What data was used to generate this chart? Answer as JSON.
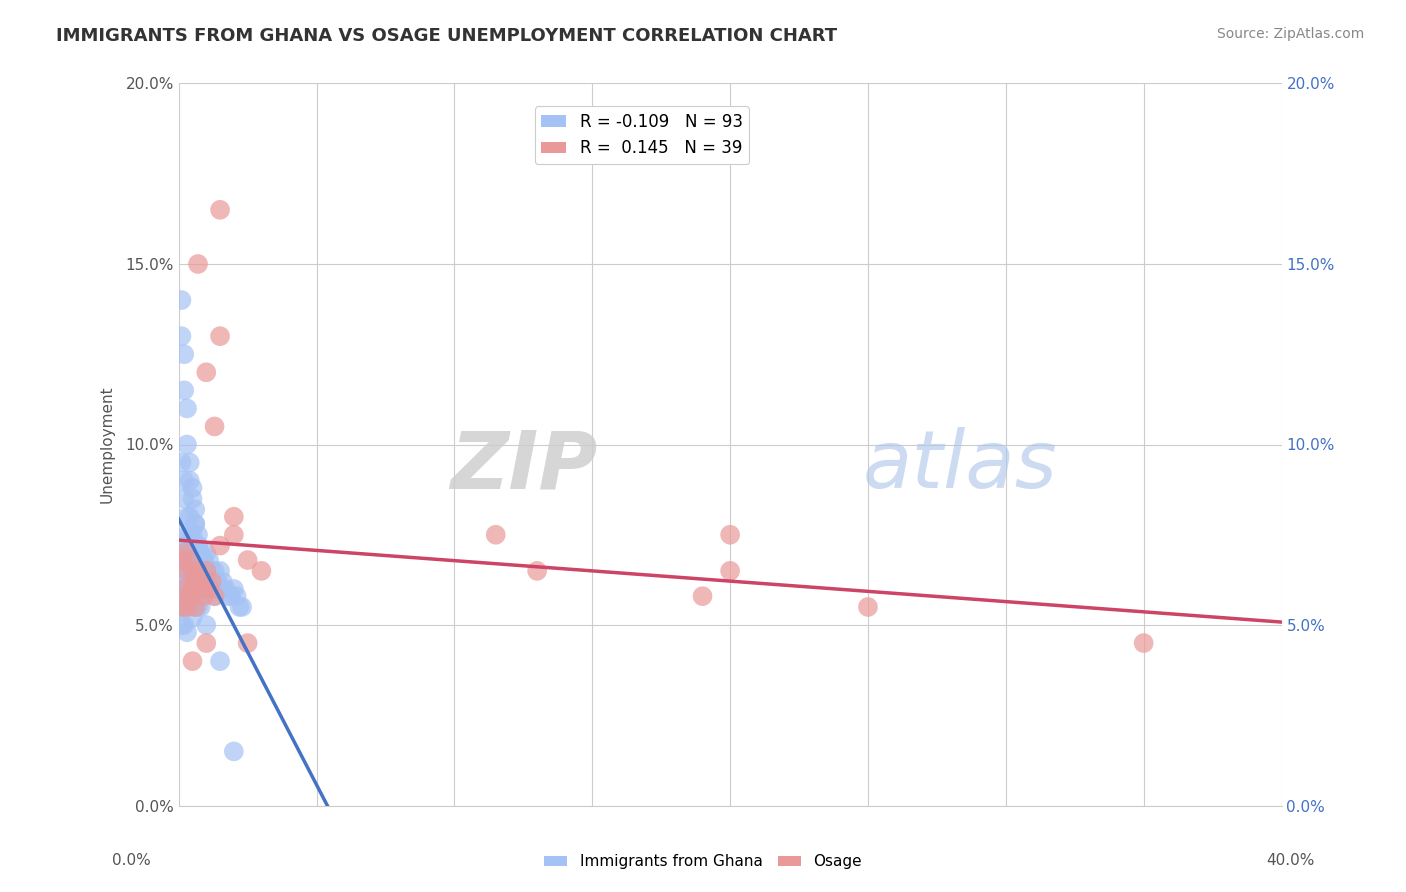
{
  "title": "IMMIGRANTS FROM GHANA VS OSAGE UNEMPLOYMENT CORRELATION CHART",
  "source": "Source: ZipAtlas.com",
  "ylabel": "Unemployment",
  "xlim": [
    0.0,
    0.4
  ],
  "ylim": [
    0.0,
    0.2
  ],
  "xticks": [
    0.0,
    0.05,
    0.1,
    0.15,
    0.2,
    0.25,
    0.3,
    0.35,
    0.4
  ],
  "xtick_labels_left": "0.0%",
  "xtick_labels_right": "40.0%",
  "yticks": [
    0.0,
    0.05,
    0.1,
    0.15,
    0.2
  ],
  "ytick_labels": [
    "0.0%",
    "5.0%",
    "10.0%",
    "15.0%",
    "20.0%"
  ],
  "blue_color": "#a4c2f4",
  "pink_color": "#ea9999",
  "blue_label": "Immigrants from Ghana",
  "pink_label": "Osage",
  "R_blue": -0.109,
  "N_blue": 93,
  "R_pink": 0.145,
  "N_pink": 39,
  "blue_scatter_x": [
    0.001,
    0.001,
    0.001,
    0.001,
    0.001,
    0.002,
    0.002,
    0.002,
    0.002,
    0.002,
    0.002,
    0.003,
    0.003,
    0.003,
    0.003,
    0.003,
    0.003,
    0.004,
    0.004,
    0.004,
    0.004,
    0.004,
    0.005,
    0.005,
    0.005,
    0.005,
    0.005,
    0.006,
    0.006,
    0.006,
    0.006,
    0.007,
    0.007,
    0.007,
    0.007,
    0.008,
    0.008,
    0.008,
    0.009,
    0.009,
    0.01,
    0.01,
    0.01,
    0.011,
    0.011,
    0.012,
    0.012,
    0.013,
    0.013,
    0.014,
    0.015,
    0.015,
    0.016,
    0.017,
    0.018,
    0.019,
    0.02,
    0.021,
    0.022,
    0.023,
    0.001,
    0.001,
    0.002,
    0.002,
    0.003,
    0.003,
    0.004,
    0.004,
    0.005,
    0.005,
    0.006,
    0.006,
    0.007,
    0.007,
    0.008,
    0.009,
    0.01,
    0.011,
    0.012,
    0.013,
    0.001,
    0.002,
    0.002,
    0.003,
    0.004,
    0.005,
    0.005,
    0.006,
    0.007,
    0.008,
    0.01,
    0.015,
    0.02
  ],
  "blue_scatter_y": [
    0.07,
    0.055,
    0.06,
    0.065,
    0.05,
    0.072,
    0.068,
    0.062,
    0.058,
    0.055,
    0.05,
    0.075,
    0.07,
    0.065,
    0.06,
    0.058,
    0.048,
    0.08,
    0.072,
    0.068,
    0.06,
    0.055,
    0.075,
    0.068,
    0.062,
    0.058,
    0.052,
    0.078,
    0.07,
    0.065,
    0.055,
    0.072,
    0.065,
    0.06,
    0.055,
    0.07,
    0.065,
    0.06,
    0.068,
    0.062,
    0.07,
    0.065,
    0.06,
    0.068,
    0.062,
    0.065,
    0.06,
    0.065,
    0.06,
    0.062,
    0.065,
    0.06,
    0.062,
    0.06,
    0.058,
    0.058,
    0.06,
    0.058,
    0.055,
    0.055,
    0.14,
    0.13,
    0.125,
    0.115,
    0.11,
    0.1,
    0.095,
    0.09,
    0.088,
    0.085,
    0.082,
    0.078,
    0.075,
    0.072,
    0.07,
    0.068,
    0.065,
    0.062,
    0.06,
    0.058,
    0.095,
    0.09,
    0.085,
    0.08,
    0.075,
    0.07,
    0.065,
    0.062,
    0.058,
    0.055,
    0.05,
    0.04,
    0.015
  ],
  "pink_scatter_x": [
    0.001,
    0.001,
    0.002,
    0.002,
    0.003,
    0.003,
    0.004,
    0.004,
    0.005,
    0.005,
    0.006,
    0.006,
    0.007,
    0.008,
    0.009,
    0.01,
    0.011,
    0.012,
    0.013,
    0.015,
    0.007,
    0.01,
    0.013,
    0.015,
    0.02,
    0.025,
    0.03,
    0.025,
    0.2,
    0.2,
    0.19,
    0.115,
    0.13,
    0.35,
    0.25,
    0.02,
    0.015,
    0.01,
    0.005
  ],
  "pink_scatter_y": [
    0.068,
    0.055,
    0.07,
    0.06,
    0.065,
    0.055,
    0.068,
    0.058,
    0.065,
    0.06,
    0.062,
    0.055,
    0.065,
    0.06,
    0.058,
    0.065,
    0.06,
    0.062,
    0.058,
    0.13,
    0.15,
    0.12,
    0.105,
    0.072,
    0.075,
    0.068,
    0.065,
    0.045,
    0.075,
    0.065,
    0.058,
    0.075,
    0.065,
    0.045,
    0.055,
    0.08,
    0.165,
    0.045,
    0.04
  ],
  "watermark_zip": "ZIP",
  "watermark_atlas": "atlas",
  "background_color": "#ffffff",
  "grid_color": "#cccccc",
  "blue_trend_color": "#4472c4",
  "pink_trend_color": "#cc4466",
  "dash_color": "#aaaacc"
}
